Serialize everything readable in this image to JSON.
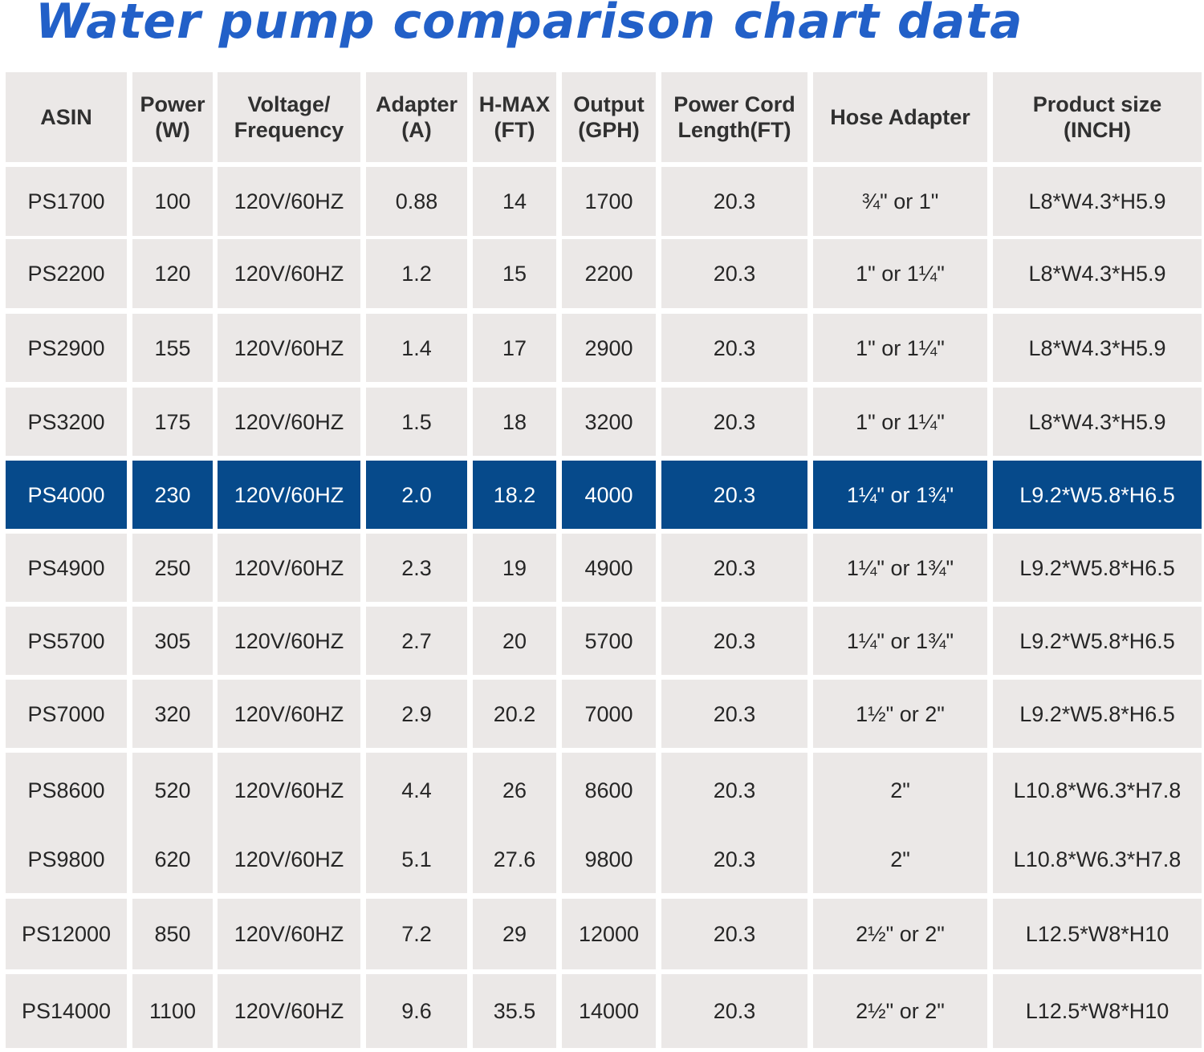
{
  "page": {
    "title": "Water pump comparison chart data",
    "accent_color": "#2260c8",
    "highlight_color": "#064a8b",
    "cell_color": "#ebe8e7"
  },
  "table": {
    "headers": [
      "ASIN",
      "Power\n(W)",
      "Voltage/\nFrequency",
      "Adapter\n(A)",
      "H-MAX\n(FT)",
      "Output\n(GPH)",
      "Power Cord\nLength(FT)",
      "Hose Adapter",
      "Product size\n(INCH)"
    ],
    "highlighted_row": 4,
    "rows": [
      [
        "PS1700",
        "100",
        "120V/60HZ",
        "0.88",
        "14",
        "1700",
        "20.3",
        "¾\" or 1\"",
        "L8*W4.3*H5.9"
      ],
      [
        "PS2200",
        "120",
        "120V/60HZ",
        "1.2",
        "15",
        "2200",
        "20.3",
        "1\" or 1¼\"",
        "L8*W4.3*H5.9"
      ],
      [
        "PS2900",
        "155",
        "120V/60HZ",
        "1.4",
        "17",
        "2900",
        "20.3",
        "1\" or 1¼\"",
        "L8*W4.3*H5.9"
      ],
      [
        "PS3200",
        "175",
        "120V/60HZ",
        "1.5",
        "18",
        "3200",
        "20.3",
        "1\" or 1¼\"",
        "L8*W4.3*H5.9"
      ],
      [
        "PS4000",
        "230",
        "120V/60HZ",
        "2.0",
        "18.2",
        "4000",
        "20.3",
        "1¼\" or 1¾\"",
        "L9.2*W5.8*H6.5"
      ],
      [
        "PS4900",
        "250",
        "120V/60HZ",
        "2.3",
        "19",
        "4900",
        "20.3",
        "1¼\" or 1¾\"",
        "L9.2*W5.8*H6.5"
      ],
      [
        "PS5700",
        "305",
        "120V/60HZ",
        "2.7",
        "20",
        "5700",
        "20.3",
        "1¼\" or 1¾\"",
        "L9.2*W5.8*H6.5"
      ],
      [
        "PS7000",
        "320",
        "120V/60HZ",
        "2.9",
        "20.2",
        "7000",
        "20.3",
        "1½\" or 2\"",
        "L9.2*W5.8*H6.5"
      ],
      [
        "PS8600",
        "520",
        "120V/60HZ",
        "4.4",
        "26",
        "8600",
        "20.3",
        "2\"",
        "L10.8*W6.3*H7.8"
      ],
      [
        "PS9800",
        "620",
        "120V/60HZ",
        "5.1",
        "27.6",
        "9800",
        "20.3",
        "2\"",
        "L10.8*W6.3*H7.8"
      ],
      [
        "PS12000",
        "850",
        "120V/60HZ",
        "7.2",
        "29",
        "12000",
        "20.3",
        "2½\" or 2\"",
        "L12.5*W8*H10"
      ],
      [
        "PS14000",
        "1100",
        "120V/60HZ",
        "9.6",
        "35.5",
        "14000",
        "20.3",
        "2½\" or 2\"",
        "L12.5*W8*H10"
      ]
    ]
  },
  "chart_data": {
    "type": "table",
    "title": "Water pump comparison chart data",
    "columns": [
      "ASIN",
      "Power (W)",
      "Voltage/Frequency",
      "Adapter (A)",
      "H-MAX (FT)",
      "Output (GPH)",
      "Power Cord Length(FT)",
      "Hose Adapter",
      "Product size (INCH)"
    ],
    "rows": [
      [
        "PS1700",
        100,
        "120V/60HZ",
        0.88,
        14,
        1700,
        20.3,
        "¾\" or 1\"",
        "L8*W4.3*H5.9"
      ],
      [
        "PS2200",
        120,
        "120V/60HZ",
        1.2,
        15,
        2200,
        20.3,
        "1\" or 1¼\"",
        "L8*W4.3*H5.9"
      ],
      [
        "PS2900",
        155,
        "120V/60HZ",
        1.4,
        17,
        2900,
        20.3,
        "1\" or 1¼\"",
        "L8*W4.3*H5.9"
      ],
      [
        "PS3200",
        175,
        "120V/60HZ",
        1.5,
        18,
        3200,
        20.3,
        "1\" or 1¼\"",
        "L8*W4.3*H5.9"
      ],
      [
        "PS4000",
        230,
        "120V/60HZ",
        2.0,
        18.2,
        4000,
        20.3,
        "1¼\" or 1¾\"",
        "L9.2*W5.8*H6.5"
      ],
      [
        "PS4900",
        250,
        "120V/60HZ",
        2.3,
        19,
        4900,
        20.3,
        "1¼\" or 1¾\"",
        "L9.2*W5.8*H6.5"
      ],
      [
        "PS5700",
        305,
        "120V/60HZ",
        2.7,
        20,
        5700,
        20.3,
        "1¼\" or 1¾\"",
        "L9.2*W5.8*H6.5"
      ],
      [
        "PS7000",
        320,
        "120V/60HZ",
        2.9,
        20.2,
        7000,
        20.3,
        "1½\" or 2\"",
        "L9.2*W5.8*H6.5"
      ],
      [
        "PS8600",
        520,
        "120V/60HZ",
        4.4,
        26,
        8600,
        20.3,
        "2\"",
        "L10.8*W6.3*H7.8"
      ],
      [
        "PS9800",
        620,
        "120V/60HZ",
        5.1,
        27.6,
        9800,
        20.3,
        "2\"",
        "L10.8*W6.3*H7.8"
      ],
      [
        "PS12000",
        850,
        "120V/60HZ",
        7.2,
        29,
        12000,
        20.3,
        "2½\" or 2\"",
        "L12.5*W8*H10"
      ],
      [
        "PS14000",
        1100,
        "120V/60HZ",
        9.6,
        35.5,
        14000,
        20.3,
        "2½\" or 2\"",
        "L12.5*W8*H10"
      ]
    ],
    "highlighted_row": "PS4000"
  }
}
